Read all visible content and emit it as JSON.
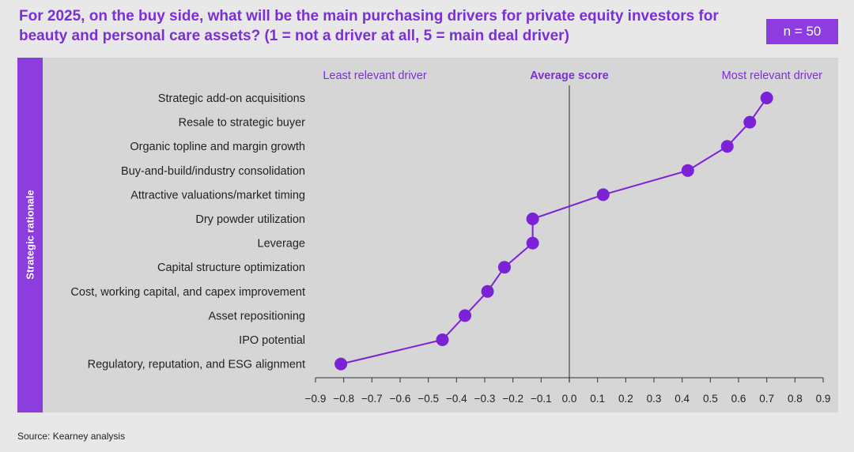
{
  "title": "For 2025, on the buy side, what will be the main purchasing drivers for private equity investors for beauty and personal care assets? (1 = not a driver at all, 5 = main deal driver)",
  "sample_size": "n = 50",
  "side_label": "Strategic rationale",
  "source": "Source: Kearney analysis",
  "colors": {
    "accent": "#8c3cdf",
    "title": "#7b2fd6",
    "point": "#7c22d6",
    "panel": "#d6d6d6"
  },
  "chart_data": {
    "type": "line",
    "orientation": "horizontal",
    "header_left": "Least relevant driver",
    "header_center": "Average score",
    "header_right": "Most relevant driver",
    "categories": [
      "Strategic add-on acquisitions",
      "Resale to strategic buyer",
      "Organic topline and margin growth",
      "Buy-and-build/industry consolidation",
      "Attractive valuations/market timing",
      "Dry powder utilization",
      "Leverage",
      "Capital structure optimization",
      "Cost, working capital, and capex improvement",
      "Asset repositioning",
      "IPO potential",
      "Regulatory, reputation, and ESG alignment"
    ],
    "values": [
      0.7,
      0.64,
      0.56,
      0.42,
      0.12,
      -0.13,
      -0.13,
      -0.23,
      -0.29,
      -0.37,
      -0.45,
      -0.81
    ],
    "xlim": [
      -0.9,
      0.9
    ],
    "xticks": [
      "−0.9",
      "−0.8",
      "−0.7",
      "−0.6",
      "−0.5",
      "−0.4",
      "−0.3",
      "−0.2",
      "−0.1",
      "0.0",
      "0.1",
      "0.2",
      "0.3",
      "0.4",
      "0.5",
      "0.6",
      "0.7",
      "0.8",
      "0.9"
    ],
    "xtick_values": [
      -0.9,
      -0.8,
      -0.7,
      -0.6,
      -0.5,
      -0.4,
      -0.3,
      -0.2,
      -0.1,
      0.0,
      0.1,
      0.2,
      0.3,
      0.4,
      0.5,
      0.6,
      0.7,
      0.8,
      0.9
    ],
    "reference_line": 0.0,
    "grid": false
  }
}
